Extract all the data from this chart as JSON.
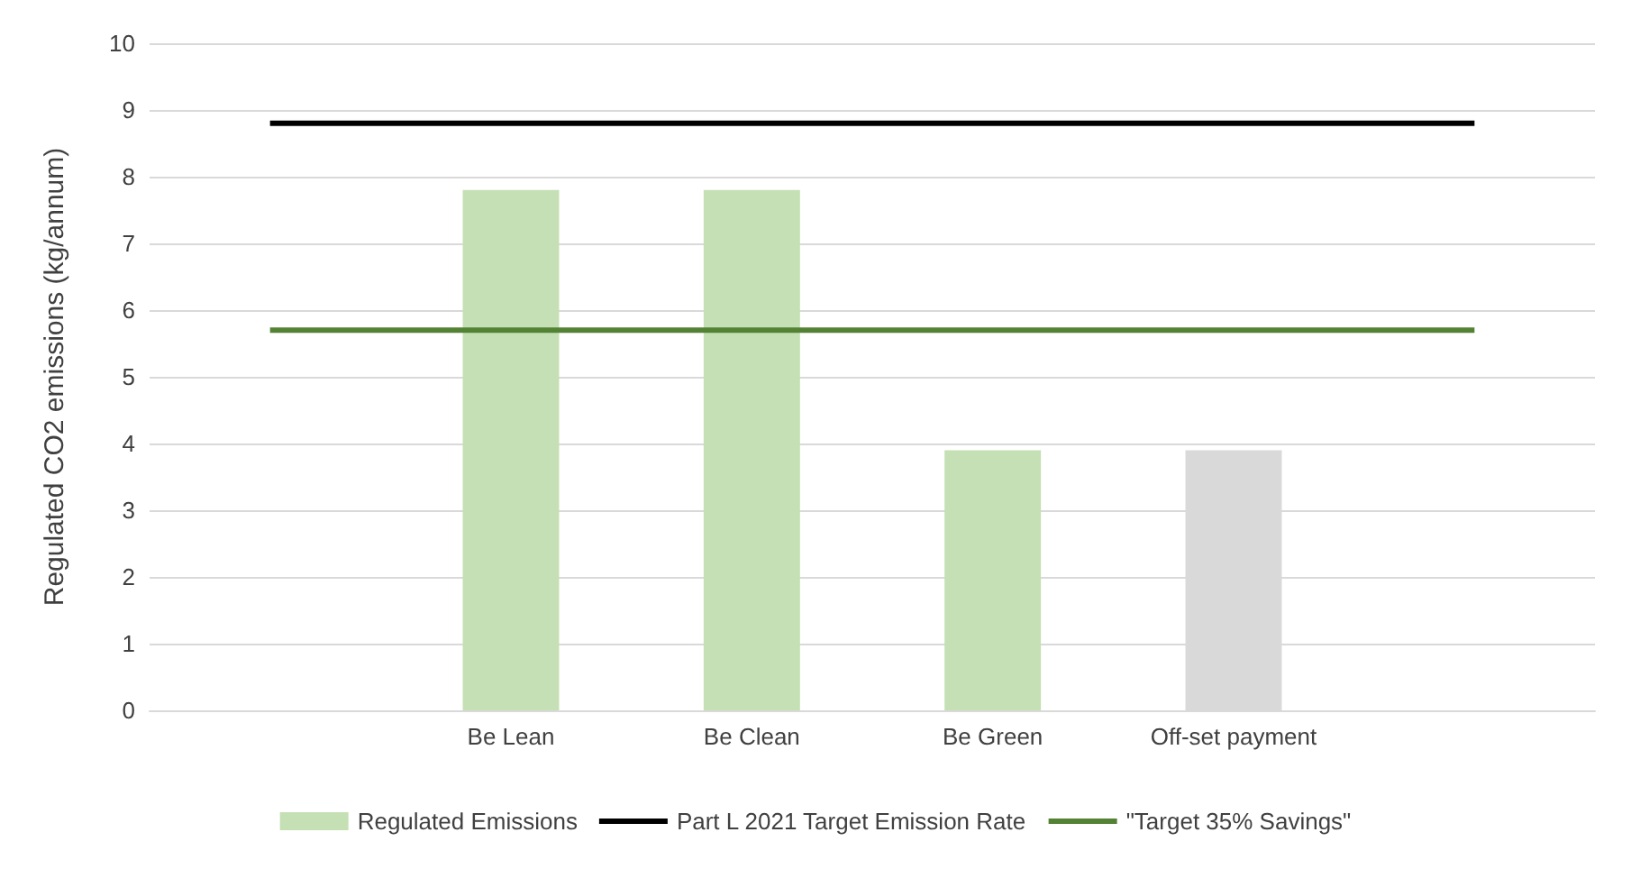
{
  "chart_data": {
    "type": "bar",
    "ylabel": "Regulated CO2 emissions (kg/annum)",
    "categories": [
      null,
      "Be Lean",
      "Be Clean",
      "Be Green",
      "Off-set payment",
      null
    ],
    "series": [
      {
        "name": "Regulated Emissions",
        "color": "#c5e0b4",
        "colors": [
          "#c5e0b4",
          "#c5e0b4",
          "#c5e0b4",
          "#c5e0b4",
          "#d9d9d9",
          "#c5e0b4"
        ],
        "values": [
          null,
          7.8,
          7.8,
          3.9,
          3.9,
          null
        ]
      },
      {
        "name": "Part L 2021 Target Emission Rate",
        "type": "line",
        "color": "#000000",
        "values": [
          8.8,
          8.8,
          8.8,
          8.8,
          8.8,
          8.8
        ]
      },
      {
        "name": "\"Target 35% Savings\"",
        "type": "line",
        "color": "#548235",
        "values": [
          5.7,
          5.7,
          5.7,
          5.7,
          5.7,
          5.7
        ]
      }
    ],
    "ylim": [
      0,
      10
    ],
    "yticks": [
      0,
      1,
      2,
      3,
      4,
      5,
      6,
      7,
      8,
      9,
      10
    ],
    "grid": "y",
    "legend": "bottom",
    "marker": "none",
    "line_style": "solid"
  }
}
